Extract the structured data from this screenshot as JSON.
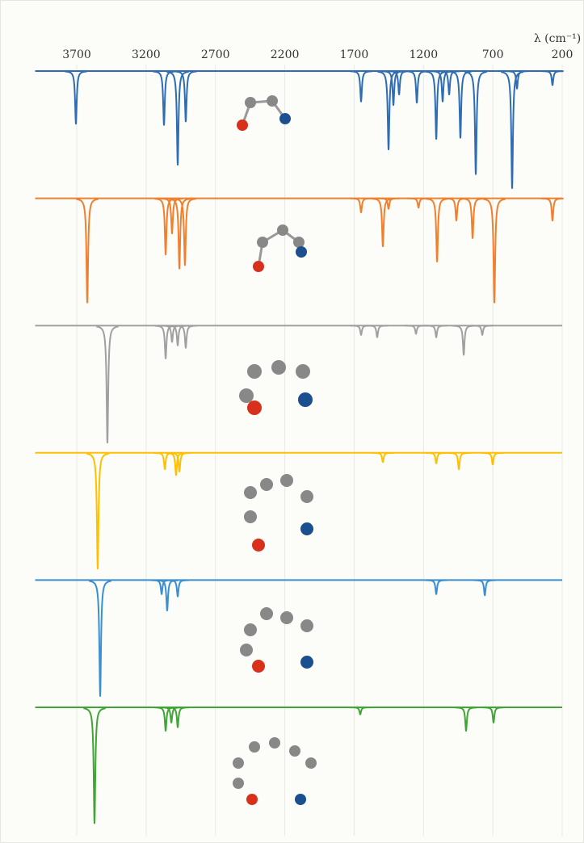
{
  "chart_data": {
    "type": "spectra",
    "x_label": "λ (cm⁻¹)",
    "xlim": [
      4000,
      200
    ],
    "xticks": [
      3700,
      3200,
      2700,
      2200,
      1700,
      1200,
      700,
      200
    ],
    "ylim": [
      0,
      1
    ],
    "grid": true,
    "series": [
      {
        "color": "#2e6db4",
        "x": [
          3706,
          3071,
          2972,
          2914,
          1650,
          1452,
          1417,
          1376,
          1248,
          1108,
          1062,
          1015,
          934,
          823,
          561,
          526,
          270
        ],
        "values": [
          0.45,
          0.46,
          0.8,
          0.43,
          0.26,
          0.67,
          0.29,
          0.2,
          0.27,
          0.58,
          0.26,
          0.2,
          0.57,
          0.88,
          1.0,
          0.15,
          0.12
        ]
      },
      {
        "color": "#f07f2e",
        "x": [
          3624,
          3059,
          3013,
          2960,
          2920,
          1650,
          1493,
          1452,
          1236,
          1102,
          963,
          846,
          689,
          270
        ],
        "values": [
          0.89,
          0.48,
          0.3,
          0.6,
          0.57,
          0.12,
          0.41,
          0.09,
          0.08,
          0.54,
          0.19,
          0.34,
          0.89,
          0.19
        ]
      },
      {
        "color": "#a0a0a0",
        "x": [
          3479,
          3059,
          3013,
          2972,
          2914,
          1650,
          1534,
          1254,
          1108,
          910,
          776
        ],
        "values": [
          1.0,
          0.28,
          0.14,
          0.17,
          0.19,
          0.08,
          0.1,
          0.07,
          0.1,
          0.25,
          0.08
        ]
      },
      {
        "color": "#ffc000",
        "x": [
          3549,
          3065,
          2984,
          2960,
          1493,
          1108,
          945,
          701
        ],
        "values": [
          0.99,
          0.14,
          0.19,
          0.16,
          0.08,
          0.09,
          0.14,
          0.1
        ]
      },
      {
        "color": "#3a8fd0",
        "x": [
          3531,
          3088,
          3048,
          2972,
          1108,
          758
        ],
        "values": [
          0.99,
          0.12,
          0.26,
          0.14,
          0.12,
          0.13
        ]
      },
      {
        "color": "#3fa535",
        "x": [
          3572,
          3059,
          3018,
          2972,
          1656,
          893,
          695
        ],
        "values": [
          0.99,
          0.2,
          0.13,
          0.17,
          0.06,
          0.2,
          0.13
        ]
      }
    ]
  }
}
